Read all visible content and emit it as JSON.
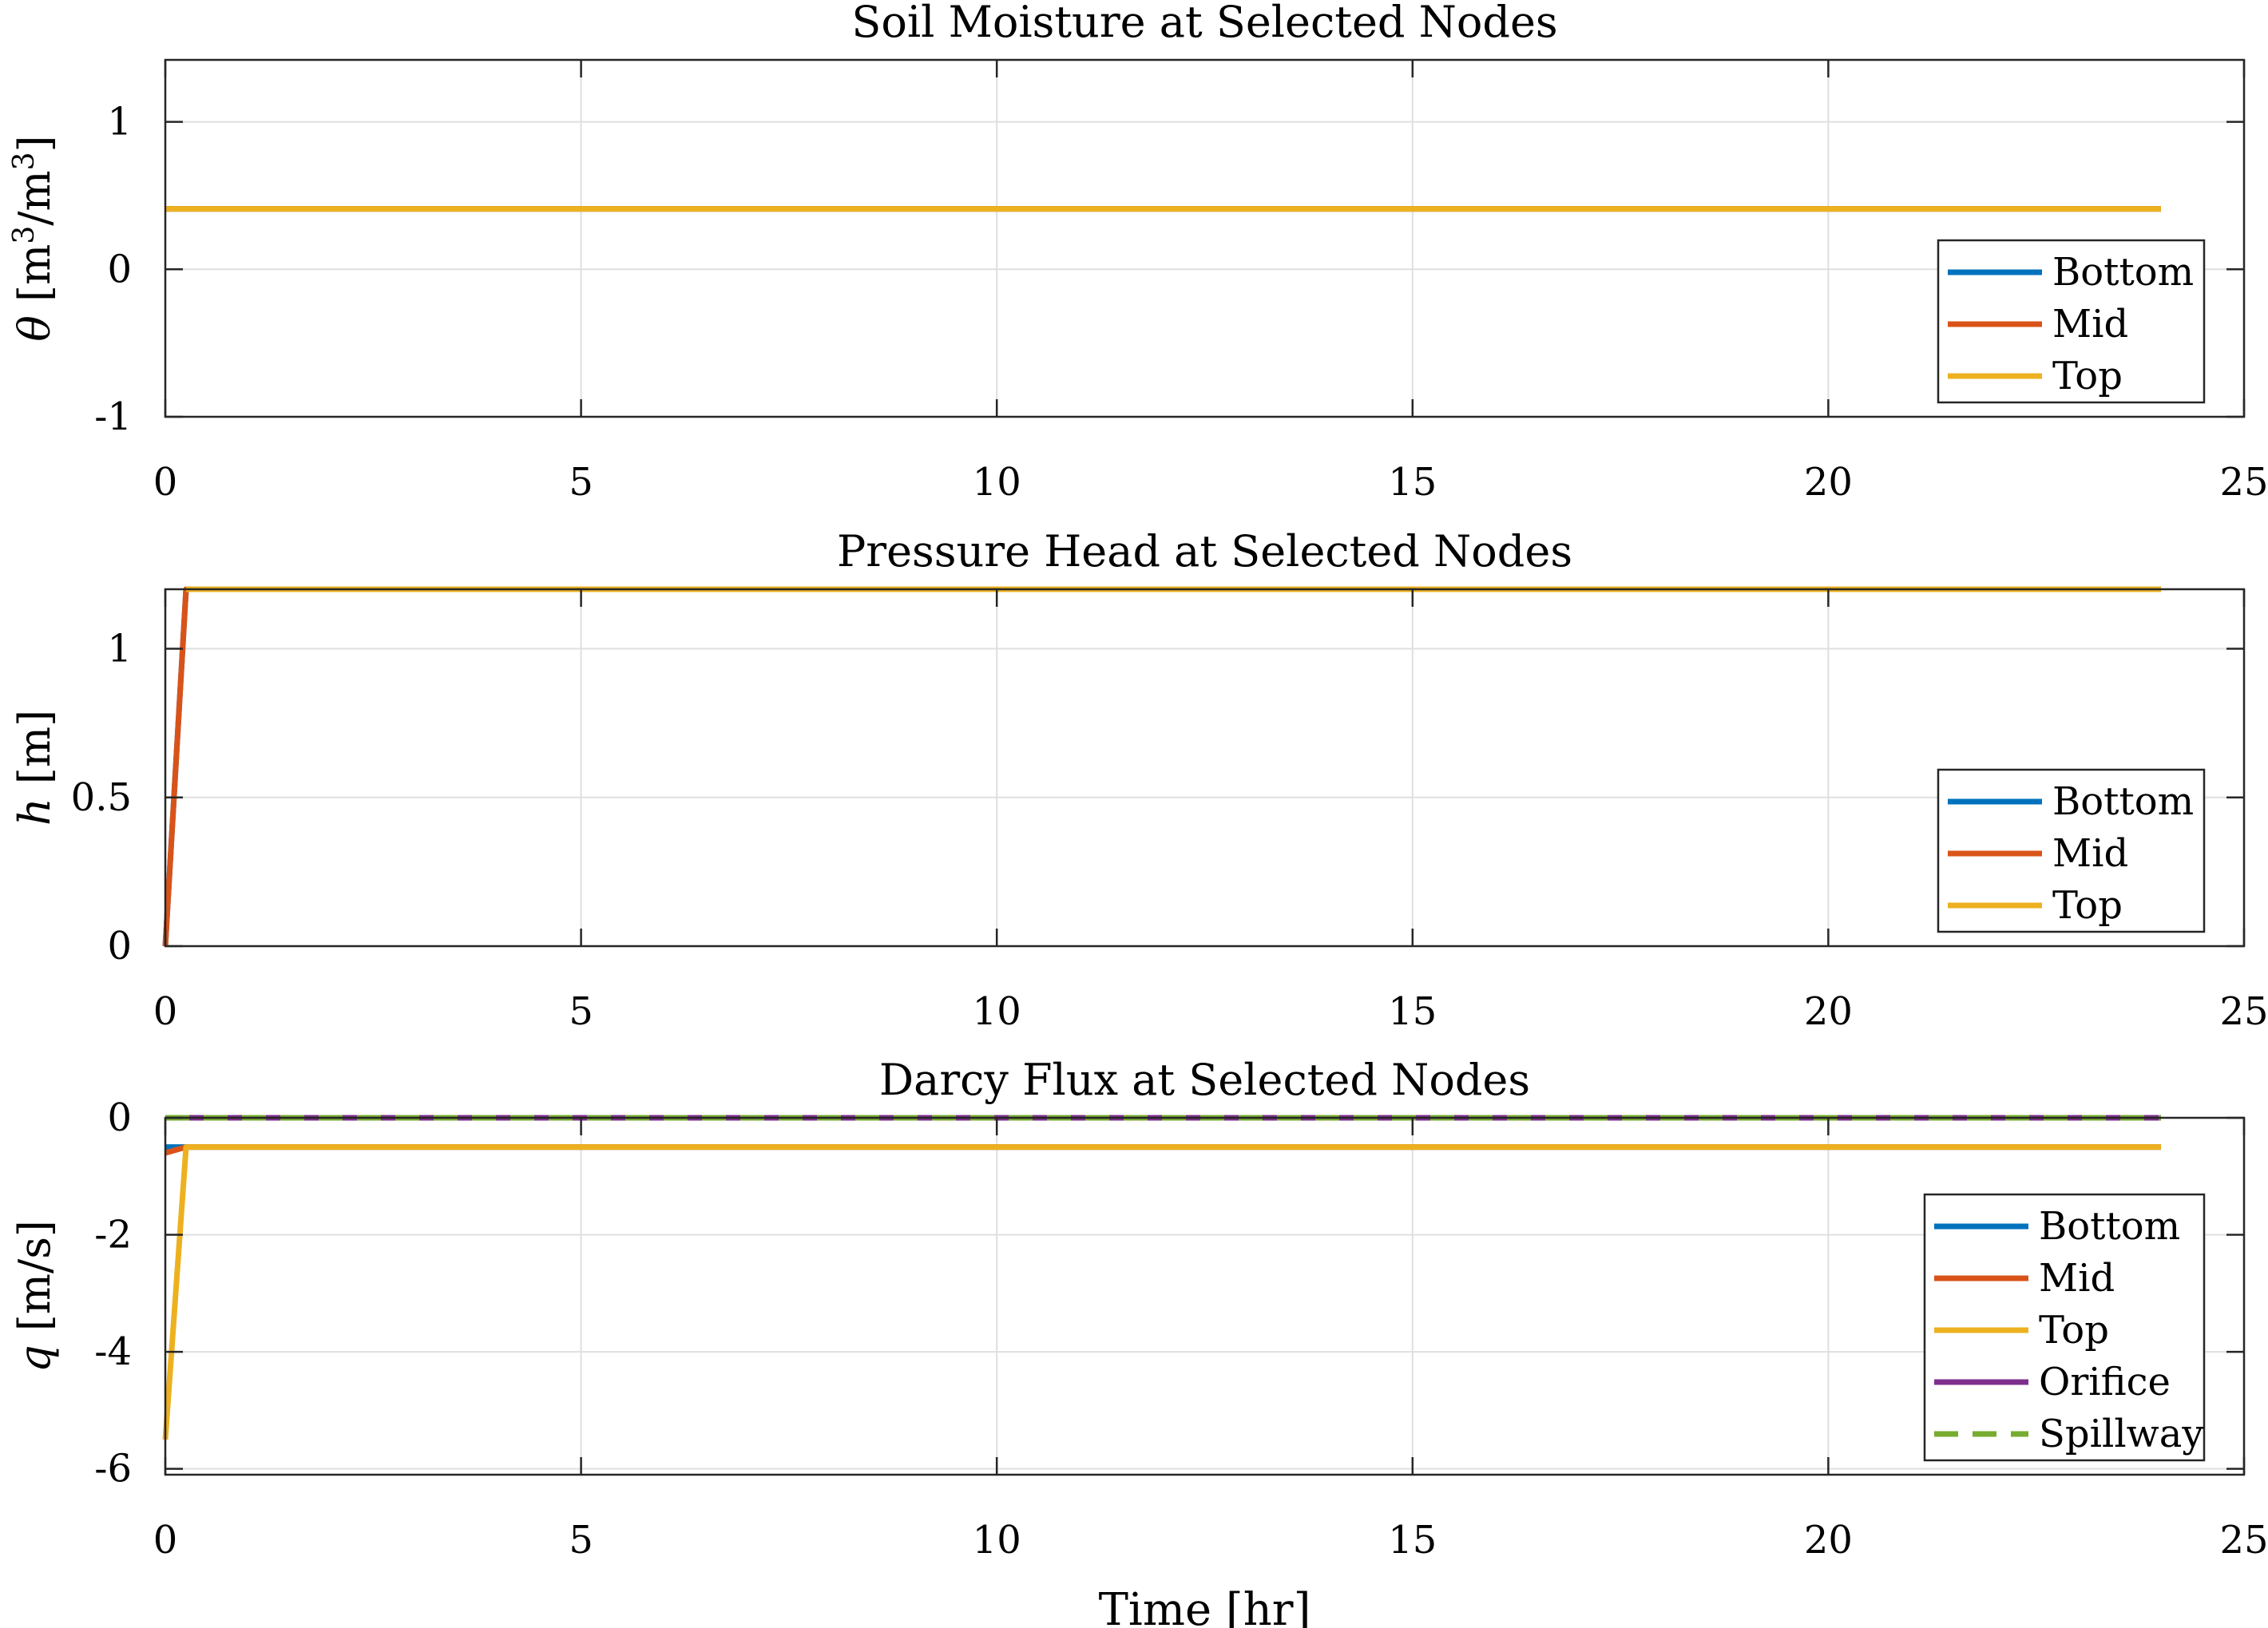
{
  "chart_data": [
    {
      "type": "line",
      "title": "Soil Moisture at Selected Nodes",
      "xlabel": "",
      "ylabel": "θ [m³/m³]",
      "ylabel_parts": {
        "symbol": "θ",
        "pre": "[m",
        "sup1": "3",
        "mid": "/m",
        "sup2": "3",
        "post": "]"
      },
      "xlim": [
        0,
        25
      ],
      "ylim": [
        -1,
        1.42
      ],
      "xticks": [
        0,
        5,
        10,
        15,
        20,
        25
      ],
      "yticks": [
        -1,
        0,
        1
      ],
      "grid": true,
      "legend_position": "bottom-right",
      "series": [
        {
          "name": "Bottom",
          "color": "#0072BD",
          "dash": false,
          "x": [
            0,
            24
          ],
          "y": [
            0.41,
            0.41
          ]
        },
        {
          "name": "Mid",
          "color": "#D95319",
          "dash": false,
          "x": [
            0,
            24
          ],
          "y": [
            0.41,
            0.41
          ]
        },
        {
          "name": "Top",
          "color": "#EDB120",
          "dash": false,
          "x": [
            0,
            24
          ],
          "y": [
            0.41,
            0.41
          ]
        }
      ]
    },
    {
      "type": "line",
      "title": "Pressure Head at Selected Nodes",
      "xlabel": "",
      "ylabel": "h [m]",
      "ylabel_parts": {
        "symbol": "h",
        "pre": "[m]",
        "sup1": "",
        "mid": "",
        "sup2": "",
        "post": ""
      },
      "xlim": [
        0,
        25
      ],
      "ylim": [
        0,
        1.2
      ],
      "xticks": [
        0,
        5,
        10,
        15,
        20,
        25
      ],
      "yticks": [
        0,
        0.5,
        1
      ],
      "grid": true,
      "legend_position": "bottom-right",
      "series": [
        {
          "name": "Bottom",
          "color": "#0072BD",
          "dash": false,
          "x": [
            0,
            0.25,
            24
          ],
          "y": [
            0,
            1.2,
            1.2
          ]
        },
        {
          "name": "Mid",
          "color": "#D95319",
          "dash": false,
          "x": [
            0,
            0.25,
            24
          ],
          "y": [
            0,
            1.2,
            1.2
          ]
        },
        {
          "name": "Top",
          "color": "#EDB120",
          "dash": false,
          "x": [
            0.25,
            24
          ],
          "y": [
            1.2,
            1.2
          ]
        }
      ]
    },
    {
      "type": "line",
      "title": "Darcy Flux at Selected Nodes",
      "xlabel": "Time [hr]",
      "ylabel": "q [m/s]",
      "ylabel_parts": {
        "symbol": "q",
        "pre": "[m/s]",
        "sup1": "",
        "mid": "",
        "sup2": "",
        "post": ""
      },
      "xlim": [
        0,
        25
      ],
      "ylim": [
        -6.1,
        0
      ],
      "xticks": [
        0,
        5,
        10,
        15,
        20,
        25
      ],
      "yticks": [
        -6,
        -4,
        -2,
        0
      ],
      "grid": true,
      "legend_position": "bottom-right",
      "series": [
        {
          "name": "Bottom",
          "color": "#0072BD",
          "dash": false,
          "x": [
            0,
            0.25,
            24
          ],
          "y": [
            -0.5,
            -0.5,
            -0.5
          ]
        },
        {
          "name": "Mid",
          "color": "#D95319",
          "dash": false,
          "x": [
            0,
            0.25,
            24
          ],
          "y": [
            -0.6,
            -0.5,
            -0.5
          ]
        },
        {
          "name": "Top",
          "color": "#EDB120",
          "dash": false,
          "x": [
            0,
            0.25,
            24
          ],
          "y": [
            -5.5,
            -0.5,
            -0.5
          ]
        },
        {
          "name": "Orifice",
          "color": "#7E2F8E",
          "dash": false,
          "x": [
            0,
            24
          ],
          "y": [
            0,
            0
          ]
        },
        {
          "name": "Spillway",
          "color": "#77AC30",
          "dash": true,
          "x": [
            0,
            24
          ],
          "y": [
            0,
            0
          ]
        }
      ]
    }
  ]
}
